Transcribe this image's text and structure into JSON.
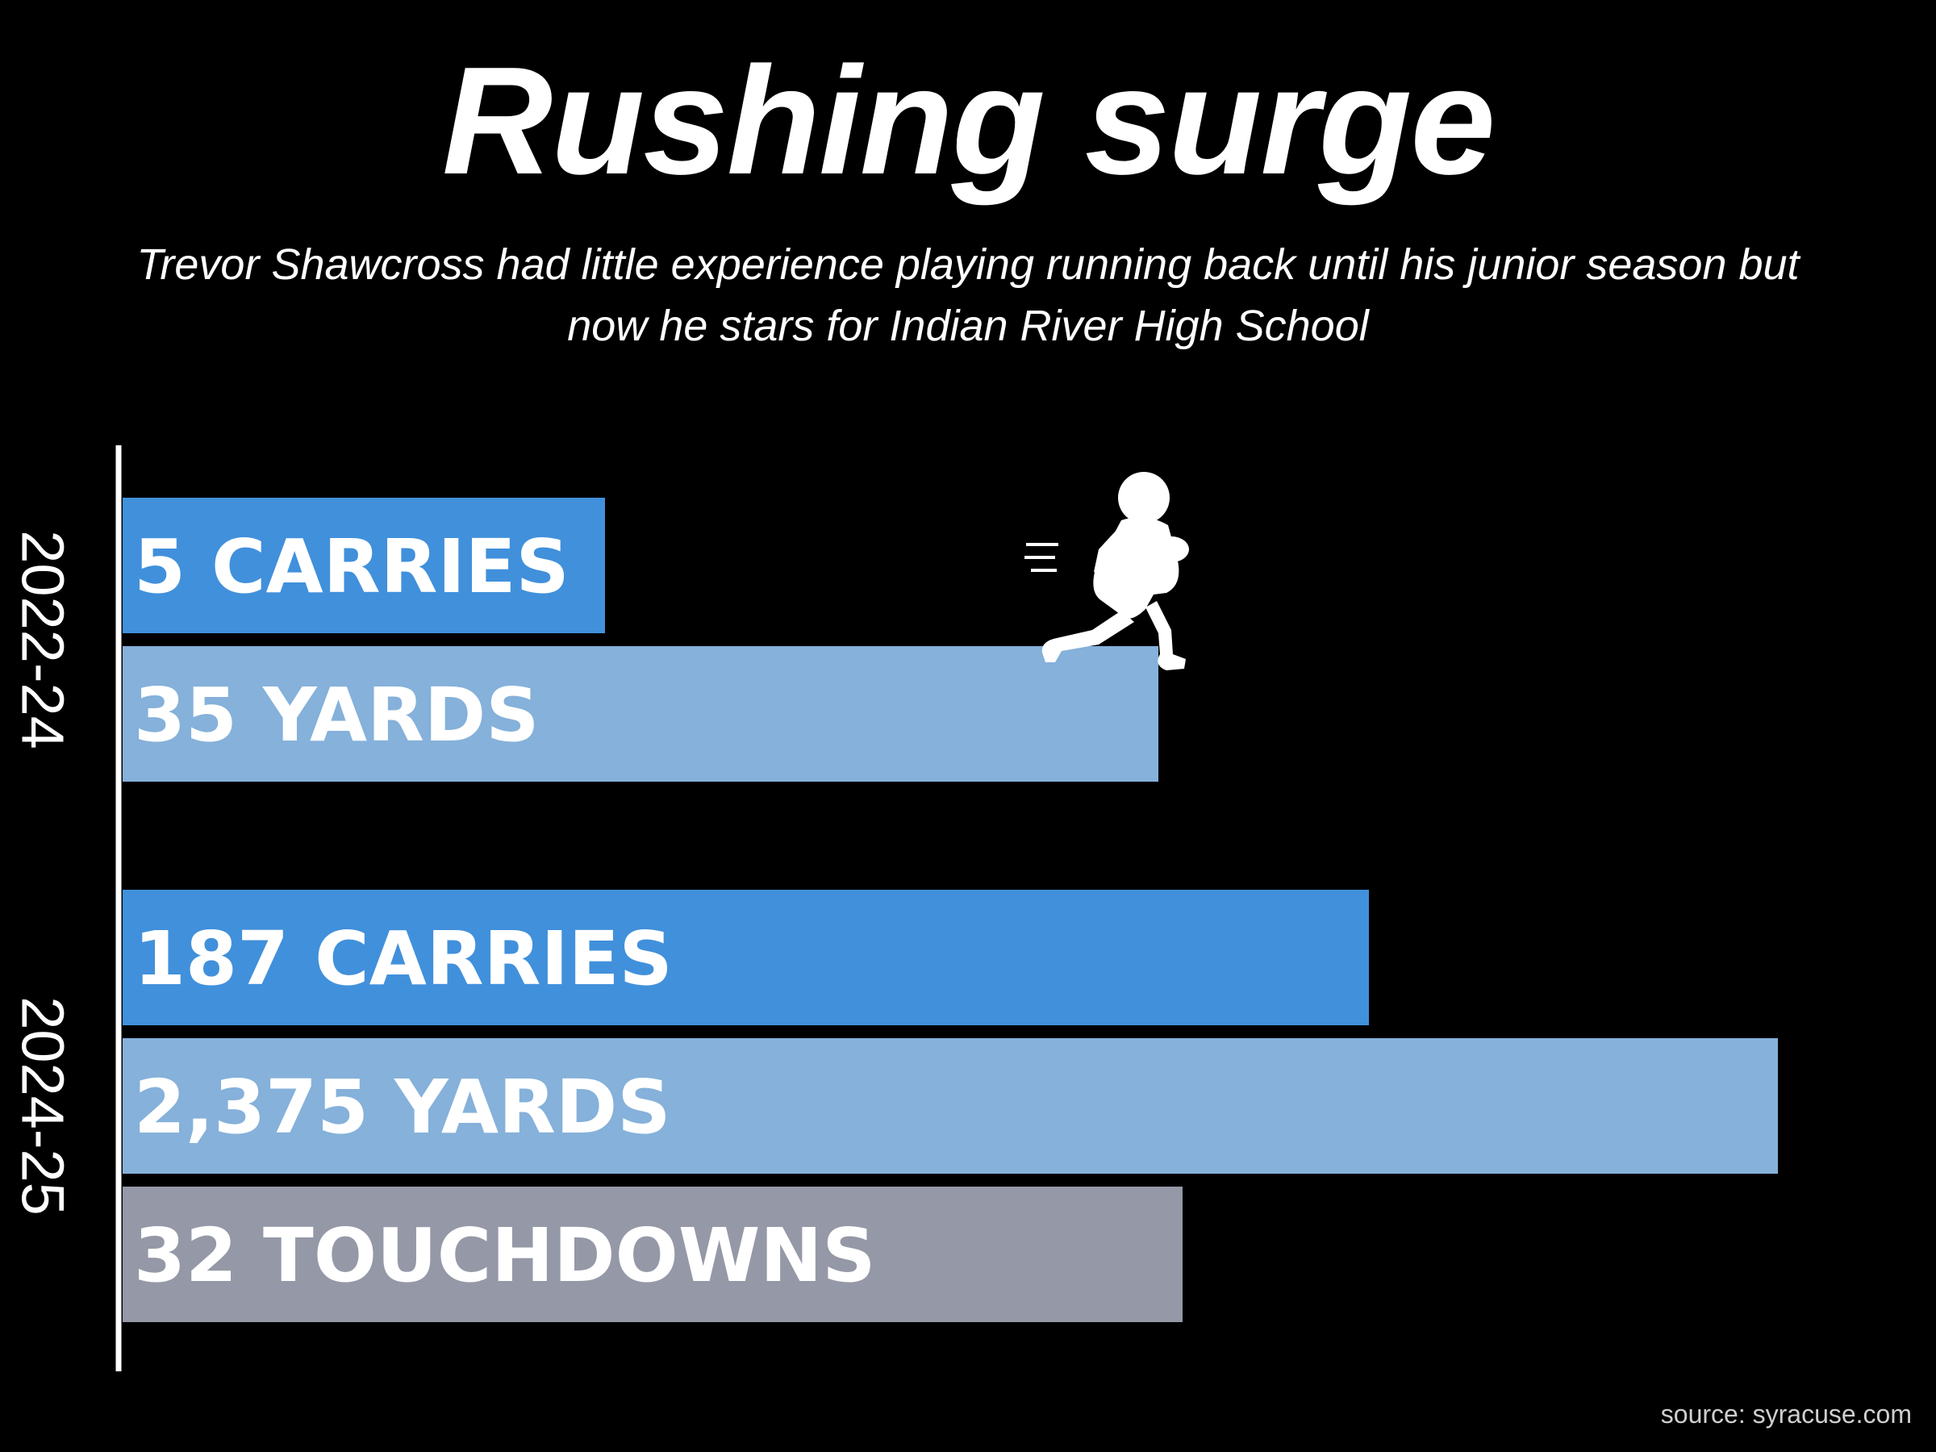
{
  "header": {
    "title": "Rushing surge",
    "subtitle": "Trevor Shawcross had little experience playing running back until his junior season but now he stars for Indian River High School"
  },
  "chart_data": {
    "type": "bar",
    "orientation": "horizontal",
    "groups": [
      {
        "label": "2022-24",
        "bars": [
          {
            "label": "5 CARRIES",
            "value": 5,
            "color": "#4190db"
          },
          {
            "label": "35 YARDS",
            "value": 35,
            "color": "#85b1da"
          }
        ]
      },
      {
        "label": "2024-25",
        "bars": [
          {
            "label": "187 CARRIES",
            "value": 187,
            "color": "#4190db"
          },
          {
            "label": "2,375 YARDS",
            "value": 2375,
            "color": "#85b1da"
          },
          {
            "label": "32 TOUCHDOWNS",
            "value": 32,
            "color": "#9598a6"
          }
        ]
      }
    ],
    "grid": false,
    "legend": "none"
  },
  "decor": {
    "icon": "football-player-icon"
  },
  "footer": {
    "source": "source: syracuse.com"
  }
}
